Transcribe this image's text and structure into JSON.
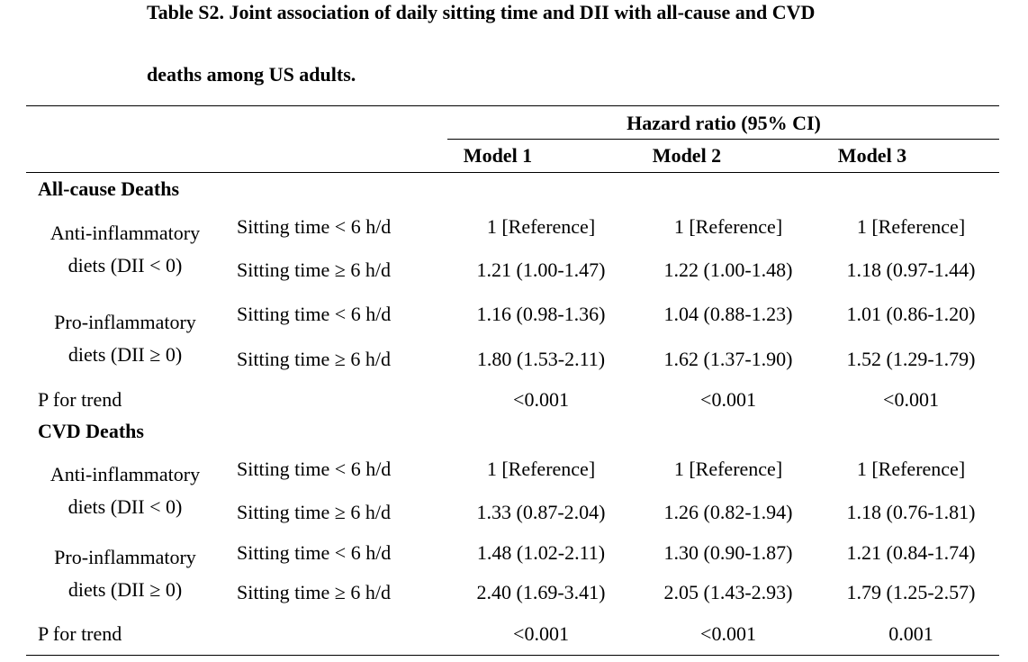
{
  "caption": {
    "line1": "Table S2. Joint association of daily sitting time and DII with all-cause and CVD",
    "line2": "deaths among US adults."
  },
  "header": {
    "spanner": "Hazard ratio (95% CI)",
    "models": [
      "Model 1",
      "Model 2",
      "Model 3"
    ]
  },
  "sections": [
    {
      "title": "All-cause Deaths",
      "groups": [
        {
          "label_line1": "Anti-inflammatory",
          "label_line2": "diets (DII < 0)",
          "rows": [
            {
              "sitting": "Sitting time < 6 h/d",
              "values": [
                "1 [Reference]",
                "1 [Reference]",
                "1 [Reference]"
              ]
            },
            {
              "sitting": "Sitting time ≥ 6 h/d",
              "values": [
                "1.21 (1.00-1.47)",
                "1.22 (1.00-1.48)",
                "1.18 (0.97-1.44)"
              ]
            }
          ]
        },
        {
          "label_line1": "Pro-inflammatory",
          "label_line2": "diets (DII ≥ 0)",
          "rows": [
            {
              "sitting": "Sitting time < 6 h/d",
              "values": [
                "1.16 (0.98-1.36)",
                "1.04 (0.88-1.23)",
                "1.01 (0.86-1.20)"
              ]
            },
            {
              "sitting": "Sitting time ≥ 6 h/d",
              "values": [
                "1.80 (1.53-2.11)",
                "1.62 (1.37-1.90)",
                "1.52 (1.29-1.79)"
              ]
            }
          ]
        }
      ],
      "trend_label": "P for trend",
      "trend_values": [
        "<0.001",
        "<0.001",
        "<0.001"
      ]
    },
    {
      "title": "CVD Deaths",
      "groups": [
        {
          "label_line1": "Anti-inflammatory",
          "label_line2": "diets (DII < 0)",
          "rows": [
            {
              "sitting": "Sitting time < 6 h/d",
              "values": [
                "1 [Reference]",
                "1 [Reference]",
                "1 [Reference]"
              ]
            },
            {
              "sitting": "Sitting time ≥ 6 h/d",
              "values": [
                "1.33 (0.87-2.04)",
                "1.26 (0.82-1.94)",
                "1.18 (0.76-1.81)"
              ]
            }
          ]
        },
        {
          "label_line1": "Pro-inflammatory",
          "label_line2": "diets (DII ≥ 0)",
          "rows": [
            {
              "sitting": "Sitting time < 6 h/d",
              "values": [
                "1.48 (1.02-2.11)",
                "1.30 (0.90-1.87)",
                "1.21 (0.84-1.74)"
              ]
            },
            {
              "sitting": "Sitting time ≥ 6 h/d",
              "values": [
                "2.40 (1.69-3.41)",
                "2.05 (1.43-2.93)",
                "1.79 (1.25-2.57)"
              ]
            }
          ]
        }
      ],
      "trend_label": "P for trend",
      "trend_values": [
        "<0.001",
        "<0.001",
        "0.001"
      ]
    }
  ]
}
